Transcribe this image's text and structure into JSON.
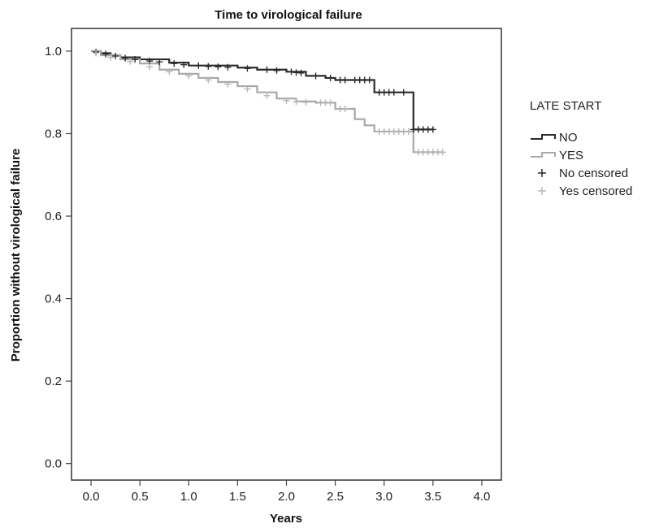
{
  "chart_data": {
    "type": "line",
    "title": "Time to virological failure",
    "xlabel": "Years",
    "ylabel": "Proportion without virological failure",
    "xlim": [
      -0.2,
      4.2
    ],
    "ylim": [
      -0.04,
      1.055
    ],
    "xticks": [
      "0.0",
      "0.5",
      "1.0",
      "1.5",
      "2.0",
      "2.5",
      "3.0",
      "3.5",
      "4.0"
    ],
    "yticks": [
      "0.0",
      "0.2",
      "0.4",
      "0.6",
      "0.8",
      "1.0"
    ],
    "legend": {
      "title": "LATE START",
      "placement": "right",
      "entries": [
        "NO",
        "YES",
        "No censored",
        "Yes censored"
      ]
    },
    "series": [
      {
        "name": "NO",
        "color": "#2b2b2b",
        "x": [
          0.0,
          0.1,
          0.2,
          0.3,
          0.5,
          0.8,
          1.0,
          1.5,
          1.7,
          2.0,
          2.2,
          2.4,
          2.5,
          2.9,
          3.3,
          3.5
        ],
        "y": [
          1.0,
          0.995,
          0.99,
          0.985,
          0.98,
          0.972,
          0.965,
          0.96,
          0.955,
          0.95,
          0.94,
          0.935,
          0.93,
          0.9,
          0.81,
          0.81
        ]
      },
      {
        "name": "YES",
        "color": "#a8a8a8",
        "x": [
          0.0,
          0.1,
          0.3,
          0.5,
          0.7,
          0.9,
          1.1,
          1.3,
          1.5,
          1.7,
          1.9,
          2.1,
          2.3,
          2.5,
          2.7,
          2.8,
          2.9,
          3.3,
          3.6
        ],
        "y": [
          1.0,
          0.99,
          0.98,
          0.97,
          0.955,
          0.945,
          0.935,
          0.925,
          0.915,
          0.9,
          0.885,
          0.878,
          0.875,
          0.86,
          0.835,
          0.82,
          0.805,
          0.755,
          0.755
        ]
      }
    ],
    "censored": [
      {
        "name": "No censored",
        "color": "#2b2b2b",
        "x": [
          0.05,
          0.15,
          0.25,
          0.35,
          0.45,
          0.6,
          0.7,
          0.85,
          0.95,
          1.1,
          1.2,
          1.3,
          1.4,
          1.6,
          1.8,
          1.9,
          2.05,
          2.1,
          2.15,
          2.3,
          2.45,
          2.55,
          2.6,
          2.7,
          2.75,
          2.8,
          2.85,
          2.95,
          3.0,
          3.05,
          3.1,
          3.2,
          3.3,
          3.35,
          3.4,
          3.45,
          3.5
        ],
        "y": [
          0.998,
          0.993,
          0.988,
          0.983,
          0.98,
          0.976,
          0.974,
          0.97,
          0.967,
          0.965,
          0.963,
          0.962,
          0.961,
          0.958,
          0.955,
          0.953,
          0.95,
          0.948,
          0.947,
          0.94,
          0.935,
          0.93,
          0.93,
          0.93,
          0.93,
          0.93,
          0.93,
          0.9,
          0.9,
          0.9,
          0.9,
          0.9,
          0.81,
          0.81,
          0.81,
          0.81,
          0.81
        ]
      },
      {
        "name": "Yes censored",
        "color": "#b5b5b5",
        "x": [
          0.05,
          0.2,
          0.4,
          0.6,
          0.8,
          1.0,
          1.2,
          1.4,
          1.6,
          1.8,
          2.0,
          2.1,
          2.2,
          2.35,
          2.4,
          2.45,
          2.55,
          2.6,
          2.95,
          3.0,
          3.05,
          3.1,
          3.15,
          3.2,
          3.25,
          3.35,
          3.4,
          3.45,
          3.5,
          3.55,
          3.6
        ],
        "y": [
          0.995,
          0.985,
          0.975,
          0.962,
          0.95,
          0.94,
          0.93,
          0.92,
          0.908,
          0.892,
          0.88,
          0.877,
          0.876,
          0.875,
          0.875,
          0.875,
          0.86,
          0.86,
          0.805,
          0.805,
          0.805,
          0.805,
          0.805,
          0.805,
          0.805,
          0.755,
          0.755,
          0.755,
          0.755,
          0.755,
          0.755
        ]
      }
    ]
  }
}
